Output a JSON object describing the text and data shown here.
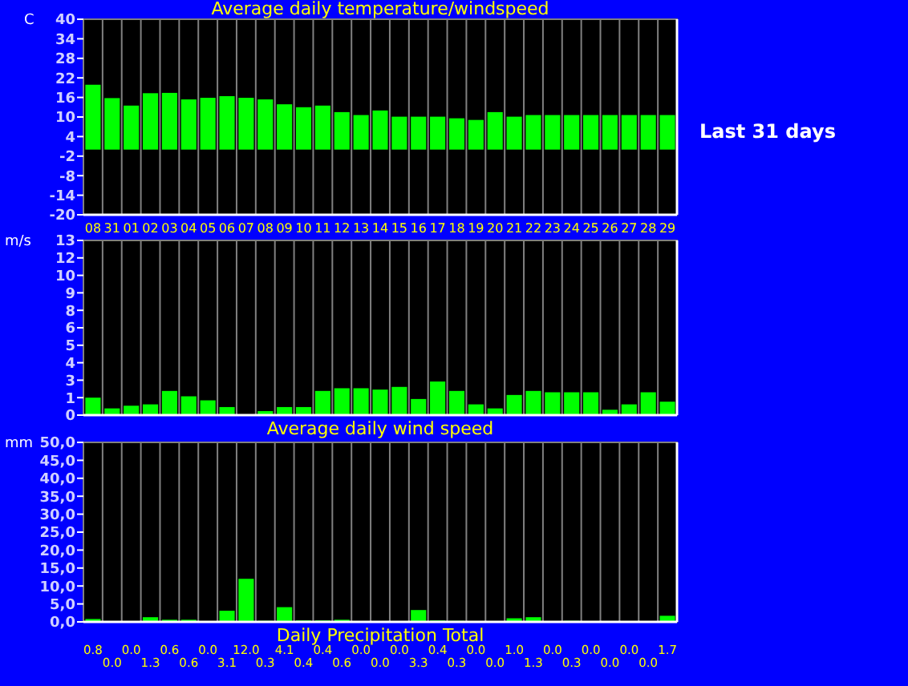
{
  "chart_data": [
    {
      "type": "bar",
      "title": "Average daily temperature/windspeed",
      "ylabel": "C",
      "annotations": [
        "Last 31 days"
      ],
      "categories": [
        "08",
        "31",
        "01",
        "02",
        "03",
        "04",
        "05",
        "06",
        "07",
        "08",
        "09",
        "10",
        "11",
        "12",
        "13",
        "14",
        "15",
        "16",
        "17",
        "18",
        "19",
        "20",
        "21",
        "22",
        "23",
        "24",
        "25",
        "26",
        "27",
        "28",
        "29"
      ],
      "values": [
        19.9,
        15.8,
        13.5,
        17.3,
        17.4,
        15.4,
        15.9,
        16.4,
        15.9,
        15.4,
        13.9,
        13.0,
        13.5,
        11.5,
        10.6,
        12.0,
        10.1,
        10.1,
        10.1,
        9.6,
        9.1,
        11.5,
        10.1,
        10.6,
        10.6,
        10.6,
        10.6,
        10.6,
        10.6,
        10.6,
        10.6
      ],
      "color": "#00ff00",
      "ylim": [
        -20,
        40
      ],
      "yticks": [
        -20,
        -14,
        -8,
        -2,
        4,
        10,
        16,
        22,
        28,
        34,
        40
      ],
      "grid": "x"
    },
    {
      "type": "bar",
      "title": "Average daily wind speed",
      "ylabel": "m/s",
      "tick_labels": "y",
      "categories": [
        null,
        null,
        null,
        null,
        null,
        null,
        null,
        null,
        null,
        null,
        null,
        null,
        null,
        null,
        null,
        null,
        null,
        null,
        null,
        null,
        null,
        null,
        null,
        null,
        null,
        null,
        null,
        null,
        null,
        null,
        null
      ],
      "values": [
        1.3,
        0.5,
        0.7,
        0.8,
        1.8,
        1.4,
        1.1,
        0.6,
        0,
        0.3,
        0.6,
        0.6,
        1.8,
        2.0,
        2.0,
        1.9,
        2.1,
        1.2,
        2.5,
        1.8,
        0.8,
        0.5,
        1.5,
        1.8,
        1.7,
        1.7,
        1.7,
        0.4,
        0.8,
        1.7,
        1.0
      ],
      "color": "#00ff00",
      "ylim": [
        0,
        13
      ],
      "yticks": [
        0,
        {
          "value": 1.3,
          "label": "1"
        },
        {
          "value": 2.6,
          "label": "3"
        },
        {
          "value": 3.9,
          "label": "4"
        },
        {
          "value": 5.2,
          "label": "5"
        },
        {
          "value": 6.5,
          "label": "6"
        },
        {
          "value": 7.8,
          "label": "8"
        },
        {
          "value": 9.1,
          "label": "9"
        },
        {
          "value": 10.4,
          "label": "10"
        },
        {
          "value": 11.7,
          "label": "12"
        },
        13
      ],
      "grid": "x"
    },
    {
      "type": "bar",
      "xlabel": "Daily Precipitation Total",
      "ylabel": "mm",
      "tick_labels": "y",
      "categories": [
        null,
        null,
        null,
        null,
        null,
        null,
        null,
        null,
        null,
        null,
        null,
        null,
        null,
        null,
        null,
        null,
        null,
        null,
        null,
        null,
        null,
        null,
        null,
        null,
        null,
        null,
        null,
        null,
        null,
        null,
        null
      ],
      "values": [
        0.8,
        0.0,
        0.0,
        1.3,
        0.6,
        0.6,
        0.0,
        3.1,
        12.0,
        0.3,
        4.1,
        0.4,
        0.4,
        0.6,
        0.0,
        0.0,
        0.0,
        3.3,
        0.4,
        0.3,
        0.0,
        0.0,
        1.0,
        1.3,
        0.0,
        0.3,
        0.0,
        0.0,
        0.0,
        0.0,
        1.7
      ],
      "value_labels": [
        "0.8",
        "0.0",
        "0.0",
        "1.3",
        "0.6",
        "0.6",
        "0.0",
        "3.1",
        "12.0",
        "0.3",
        "4.1",
        "0.4",
        "0.4",
        "0.6",
        "0.0",
        "0.0",
        "0.0",
        "3.3",
        "0.4",
        "0.3",
        "0.0",
        "0.0",
        "1.0",
        "1.3",
        "0.0",
        "0.3",
        "0.0",
        "0.0",
        "0.0",
        "0.0",
        "1.7"
      ],
      "color": "#00ff00",
      "ylim": [
        0,
        50
      ],
      "yticks": [
        {
          "value": 0,
          "label": "0,0"
        },
        {
          "value": 5,
          "label": "5,0"
        },
        {
          "value": 10,
          "label": "10,0"
        },
        {
          "value": 15,
          "label": "15,0"
        },
        {
          "value": 20,
          "label": "20,0"
        },
        {
          "value": 25,
          "label": "25,0"
        },
        {
          "value": 30,
          "label": "30,0"
        },
        {
          "value": 35,
          "label": "35,0"
        },
        {
          "value": 40,
          "label": "40,0"
        },
        {
          "value": 45,
          "label": "45,0"
        },
        {
          "value": 50,
          "label": "50,0"
        }
      ],
      "grid": "x"
    }
  ]
}
